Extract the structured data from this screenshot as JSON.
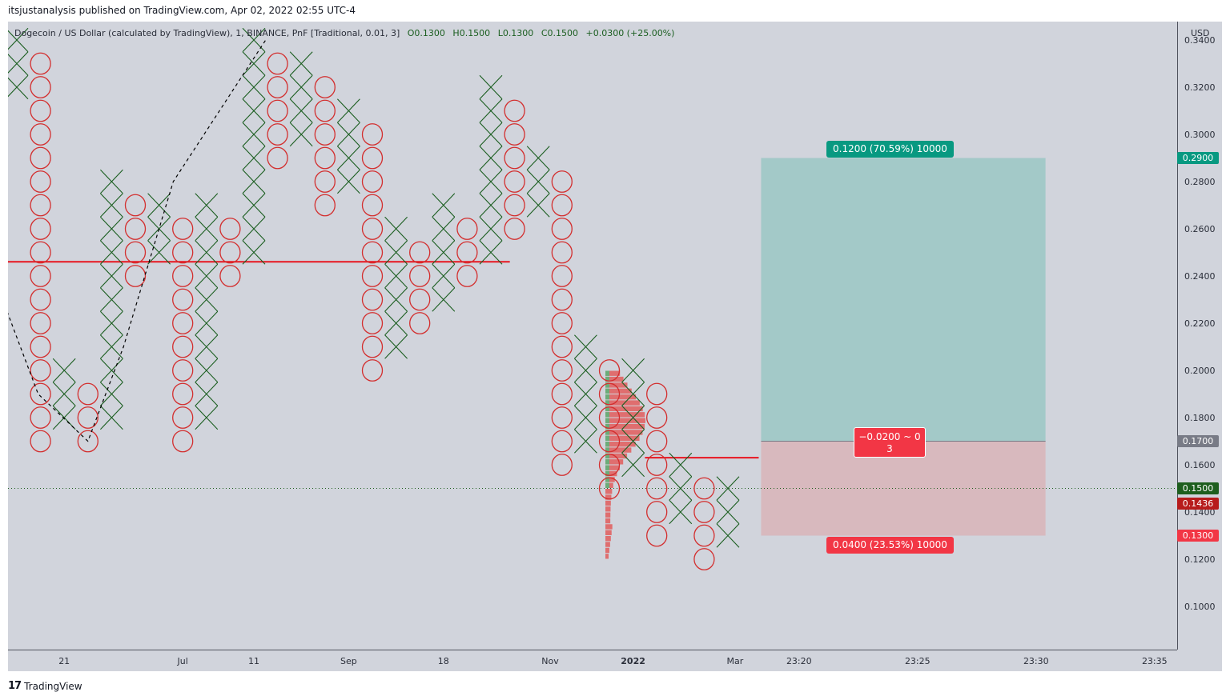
{
  "header": {
    "published": "itsjustanalysis published on TradingView.com, Apr 02, 2022 02:55 UTC-4"
  },
  "legend": {
    "symbol": "Dogecoin / US Dollar (calculated by TradingView), 1, BINANCE, PnF [Traditional, 0.01, 3]",
    "o": "O0.1300",
    "h": "H0.1500",
    "l": "L0.1300",
    "c": "C0.1500",
    "chg": "+0.0300 (+25.00%)"
  },
  "currency": "USD",
  "footer": {
    "logo": "𝟭𝟳",
    "brand": "TradingView"
  },
  "chart_data": {
    "type": "point-and-figure",
    "box_size": 0.01,
    "reversal": 3,
    "ylim": [
      0.08,
      0.34
    ],
    "y_ticks": [
      "0.1000",
      "0.1200",
      "0.1400",
      "0.1600",
      "0.1800",
      "0.2000",
      "0.2200",
      "0.2400",
      "0.2600",
      "0.2800",
      "0.3000",
      "0.3200",
      "0.3400"
    ],
    "x_ticks": [
      {
        "label": "21",
        "col": 2
      },
      {
        "label": "Jul",
        "col": 7
      },
      {
        "label": "11",
        "col": 10
      },
      {
        "label": "Sep",
        "col": 14
      },
      {
        "label": "18",
        "col": 18
      },
      {
        "label": "Nov",
        "col": 22.5
      },
      {
        "label": "2022",
        "col": 26
      },
      {
        "label": "Mar",
        "col": 30.3
      },
      {
        "label": "23:20",
        "col": 33
      },
      {
        "label": "23:25",
        "col": 38
      },
      {
        "label": "23:30",
        "col": 43
      },
      {
        "label": "23:35",
        "col": 48
      }
    ],
    "columns": [
      {
        "t": "X",
        "lo": 0.32,
        "hi": 0.34
      },
      {
        "t": "O",
        "lo": 0.17,
        "hi": 0.33
      },
      {
        "t": "X",
        "lo": 0.18,
        "hi": 0.2
      },
      {
        "t": "O",
        "lo": 0.17,
        "hi": 0.19
      },
      {
        "t": "X",
        "lo": 0.18,
        "hi": 0.28
      },
      {
        "t": "O",
        "lo": 0.24,
        "hi": 0.27
      },
      {
        "t": "X",
        "lo": 0.25,
        "hi": 0.27
      },
      {
        "t": "O",
        "lo": 0.17,
        "hi": 0.26
      },
      {
        "t": "X",
        "lo": 0.18,
        "hi": 0.27
      },
      {
        "t": "O",
        "lo": 0.24,
        "hi": 0.26
      },
      {
        "t": "X",
        "lo": 0.25,
        "hi": 0.34
      },
      {
        "t": "O",
        "lo": 0.29,
        "hi": 0.33
      },
      {
        "t": "X",
        "lo": 0.3,
        "hi": 0.33
      },
      {
        "t": "O",
        "lo": 0.27,
        "hi": 0.32
      },
      {
        "t": "X",
        "lo": 0.28,
        "hi": 0.31
      },
      {
        "t": "O",
        "lo": 0.2,
        "hi": 0.3
      },
      {
        "t": "X",
        "lo": 0.21,
        "hi": 0.26
      },
      {
        "t": "O",
        "lo": 0.22,
        "hi": 0.25
      },
      {
        "t": "X",
        "lo": 0.23,
        "hi": 0.27
      },
      {
        "t": "O",
        "lo": 0.24,
        "hi": 0.26
      },
      {
        "t": "X",
        "lo": 0.25,
        "hi": 0.32
      },
      {
        "t": "O",
        "lo": 0.26,
        "hi": 0.31
      },
      {
        "t": "X",
        "lo": 0.27,
        "hi": 0.29
      },
      {
        "t": "O",
        "lo": 0.16,
        "hi": 0.28
      },
      {
        "t": "X",
        "lo": 0.17,
        "hi": 0.21
      },
      {
        "t": "O",
        "lo": 0.15,
        "hi": 0.2
      },
      {
        "t": "X",
        "lo": 0.16,
        "hi": 0.2
      },
      {
        "t": "O",
        "lo": 0.13,
        "hi": 0.19
      },
      {
        "t": "X",
        "lo": 0.14,
        "hi": 0.16
      },
      {
        "t": "O",
        "lo": 0.12,
        "hi": 0.15
      },
      {
        "t": "X",
        "lo": 0.13,
        "hi": 0.15
      }
    ],
    "lines": [
      {
        "name": "resistance-line",
        "from_col": -0.6,
        "to_col": 20.8,
        "y": 0.246,
        "color": "#e8141f"
      },
      {
        "name": "support-line",
        "from_col": 26.5,
        "to_col": 31.3,
        "y": 0.163,
        "color": "#e8141f"
      }
    ],
    "trendline": [
      [
        -0.6,
        0.23
      ],
      [
        0.9,
        0.19
      ],
      [
        3.0,
        0.17
      ],
      [
        4.5,
        0.21
      ],
      [
        6.6,
        0.28
      ],
      [
        10.5,
        0.34
      ]
    ],
    "volume_profile": {
      "price_low": 0.12,
      "price_high": 0.2
    },
    "position": {
      "entry": 0.17,
      "target": 0.29,
      "stop": 0.13,
      "from_col": 31.4,
      "to_col": 43.4,
      "target_label": "0.1200 (70.59%) 10000",
      "stop_label": "0.0400 (23.53%) 10000",
      "ratio_line1": "−0.0200 ~ 0",
      "ratio_line2": "3"
    },
    "current_price": 0.15,
    "price_tags": [
      {
        "value": "0.2900",
        "y": 0.29,
        "color": "#089981"
      },
      {
        "value": "0.1700",
        "y": 0.17,
        "color": "#787b86"
      },
      {
        "value": "0.1500",
        "y": 0.15,
        "color": "#1e5e1e"
      },
      {
        "value": "0.1436",
        "y": 0.1436,
        "color": "#b71c1c"
      },
      {
        "value": "0.1300",
        "y": 0.13,
        "color": "#f23645"
      }
    ]
  }
}
